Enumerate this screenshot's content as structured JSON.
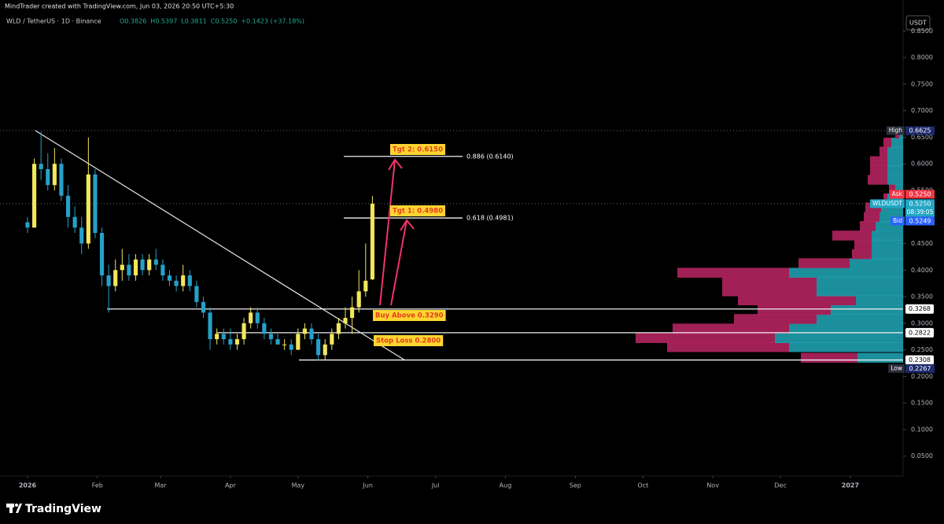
{
  "header": {
    "credit": "MindTrader created with TradingView.com, Jun 03, 2026 20:50 UTC+5:30",
    "symbol": "WLD / TetherUS · 1D · Binance",
    "ohlc": [
      "O0.3826",
      "H0.5397",
      "L0.3811",
      "C0.5250",
      "+0.1423 (+37.18%)"
    ],
    "currency": "USDT"
  },
  "chart_data": {
    "type": "candlestick",
    "up_color": "#f2e65d",
    "down_color": "#26a0c9",
    "x": [
      0,
      3,
      6,
      9,
      12,
      15,
      18,
      21,
      24,
      27,
      30,
      33,
      36,
      39,
      42,
      45,
      48,
      51,
      54,
      57,
      60,
      63,
      66,
      69,
      72,
      75,
      78,
      81,
      84,
      87,
      90,
      93,
      96,
      99,
      102,
      105,
      108,
      111,
      114,
      117,
      120,
      123,
      126,
      129,
      132,
      135,
      138,
      141,
      144,
      147,
      150,
      153
    ],
    "open": [
      0.49,
      0.48,
      0.6,
      0.59,
      0.56,
      0.6,
      0.54,
      0.5,
      0.48,
      0.45,
      0.58,
      0.47,
      0.39,
      0.37,
      0.4,
      0.41,
      0.39,
      0.42,
      0.4,
      0.42,
      0.41,
      0.39,
      0.38,
      0.37,
      0.39,
      0.37,
      0.34,
      0.32,
      0.27,
      0.28,
      0.27,
      0.26,
      0.27,
      0.3,
      0.32,
      0.3,
      0.28,
      0.27,
      0.26,
      0.26,
      0.25,
      0.28,
      0.29,
      0.27,
      0.24,
      0.26,
      0.28,
      0.3,
      0.31,
      0.33,
      0.36,
      0.3826
    ],
    "high": [
      0.5,
      0.61,
      0.66,
      0.62,
      0.63,
      0.61,
      0.56,
      0.52,
      0.5,
      0.65,
      0.59,
      0.48,
      0.41,
      0.42,
      0.44,
      0.43,
      0.43,
      0.43,
      0.43,
      0.44,
      0.42,
      0.4,
      0.39,
      0.41,
      0.4,
      0.38,
      0.35,
      0.33,
      0.29,
      0.29,
      0.29,
      0.28,
      0.31,
      0.33,
      0.33,
      0.31,
      0.29,
      0.28,
      0.27,
      0.27,
      0.29,
      0.3,
      0.3,
      0.28,
      0.27,
      0.29,
      0.31,
      0.33,
      0.35,
      0.4,
      0.45,
      0.5397
    ],
    "low": [
      0.47,
      0.48,
      0.57,
      0.55,
      0.55,
      0.53,
      0.48,
      0.47,
      0.43,
      0.44,
      0.46,
      0.37,
      0.32,
      0.36,
      0.38,
      0.38,
      0.38,
      0.39,
      0.39,
      0.4,
      0.38,
      0.37,
      0.36,
      0.36,
      0.36,
      0.33,
      0.31,
      0.25,
      0.26,
      0.26,
      0.25,
      0.25,
      0.26,
      0.29,
      0.29,
      0.27,
      0.26,
      0.26,
      0.25,
      0.24,
      0.25,
      0.27,
      0.26,
      0.23,
      0.23,
      0.25,
      0.27,
      0.29,
      0.28,
      0.32,
      0.35,
      0.3811
    ],
    "close": [
      0.48,
      0.6,
      0.59,
      0.56,
      0.6,
      0.54,
      0.5,
      0.48,
      0.45,
      0.58,
      0.47,
      0.39,
      0.37,
      0.4,
      0.41,
      0.39,
      0.42,
      0.4,
      0.42,
      0.41,
      0.39,
      0.38,
      0.37,
      0.39,
      0.37,
      0.34,
      0.32,
      0.27,
      0.28,
      0.27,
      0.26,
      0.27,
      0.3,
      0.32,
      0.3,
      0.28,
      0.27,
      0.26,
      0.26,
      0.25,
      0.28,
      0.29,
      0.27,
      0.24,
      0.26,
      0.28,
      0.3,
      0.31,
      0.33,
      0.36,
      0.38,
      0.525
    ],
    "xlim": [
      -12.2,
      388.4
    ],
    "xticks": [
      {
        "value": 0,
        "label": "2026"
      },
      {
        "value": 31,
        "label": "Feb"
      },
      {
        "value": 59,
        "label": "Mar"
      },
      {
        "value": 90,
        "label": "Apr"
      },
      {
        "value": 120,
        "label": "May"
      },
      {
        "value": 151,
        "label": "Jun"
      },
      {
        "value": 181,
        "label": "Jul"
      },
      {
        "value": 212,
        "label": "Aug"
      },
      {
        "value": 243,
        "label": "Sep"
      },
      {
        "value": 273,
        "label": "Oct"
      },
      {
        "value": 304,
        "label": "Nov"
      },
      {
        "value": 334,
        "label": "Dec"
      },
      {
        "value": 365,
        "label": "2027"
      }
    ],
    "ylim": [
      0.0125,
      0.9083
    ],
    "yticks": [
      {
        "value": 0.05,
        "label": "0.0500"
      },
      {
        "value": 0.1,
        "label": "0.1000"
      },
      {
        "value": 0.15,
        "label": "0.1500"
      },
      {
        "value": 0.2,
        "label": "0.2000"
      },
      {
        "value": 0.25,
        "label": "0.2500"
      },
      {
        "value": 0.3,
        "label": "0.3000"
      },
      {
        "value": 0.35,
        "label": "0.3500"
      },
      {
        "value": 0.4,
        "label": "0.4000"
      },
      {
        "value": 0.45,
        "label": "0.4500"
      },
      {
        "value": 0.5,
        "label": "0.5000"
      },
      {
        "value": 0.55,
        "label": "0.5500"
      },
      {
        "value": 0.6,
        "label": "0.6000"
      },
      {
        "value": 0.65,
        "label": "0.6500"
      },
      {
        "value": 0.7,
        "label": "0.7000"
      },
      {
        "value": 0.75,
        "label": "0.7500"
      },
      {
        "value": 0.8,
        "label": "0.8000"
      },
      {
        "value": 0.85,
        "label": "0.8500"
      }
    ],
    "grid": false,
    "volume_profile": {
      "buy_color": "#1f9fae",
      "sell_color": "#b3245e",
      "xlim": [
        0,
        400
      ],
      "levels": [
        0.235,
        0.255,
        0.272,
        0.29,
        0.308,
        0.325,
        0.343,
        0.36,
        0.378,
        0.395,
        0.413,
        0.43,
        0.448,
        0.465,
        0.483,
        0.5,
        0.518,
        0.535,
        0.553,
        0.57,
        0.588,
        0.605,
        0.623,
        0.64,
        0.657
      ],
      "buy": [
        58,
        145,
        163,
        145,
        110,
        92,
        60,
        110,
        110,
        145,
        68,
        40,
        40,
        40,
        35,
        30,
        28,
        20,
        10,
        20,
        20,
        20,
        20,
        15,
        5
      ],
      "sell": [
        72,
        155,
        177,
        148,
        105,
        93,
        150,
        120,
        120,
        142,
        65,
        25,
        22,
        50,
        20,
        20,
        20,
        5,
        8,
        25,
        22,
        22,
        10,
        10,
        5
      ]
    },
    "price_tags": [
      {
        "name": "High",
        "price": 0.6625,
        "color": "#1c2a6b"
      },
      {
        "name": "Ask",
        "price": {
          "value": 0.525,
          "label": "0.5250"
        },
        "color": "#f23645"
      },
      {
        "name": "WLDUSDT",
        "price": {
          "value": 0.525,
          "label": "0.5250"
        },
        "countdown": "08:39:05",
        "color": "#22a6c4"
      },
      {
        "name": "Bid",
        "price": 0.5249,
        "color": "#2962ff"
      },
      {
        "name": "Low",
        "price": 0.2267,
        "color": "#1c2a6b"
      }
    ],
    "levels": [
      0.3268,
      0.2822,
      0.2308
    ],
    "fib_levels": [
      {
        "value": 0.614,
        "label": "0.886 (0.6140)"
      },
      {
        "value": 0.4981,
        "label": "0.618 (0.4981)"
      }
    ],
    "annotations": [
      "Tgt 2: 0.6150",
      "Tgt 1: 0.4980",
      "Buy Above 0.3290",
      "Stop Loss 0.2800"
    ]
  },
  "footer": {
    "brand": "TradingView"
  }
}
